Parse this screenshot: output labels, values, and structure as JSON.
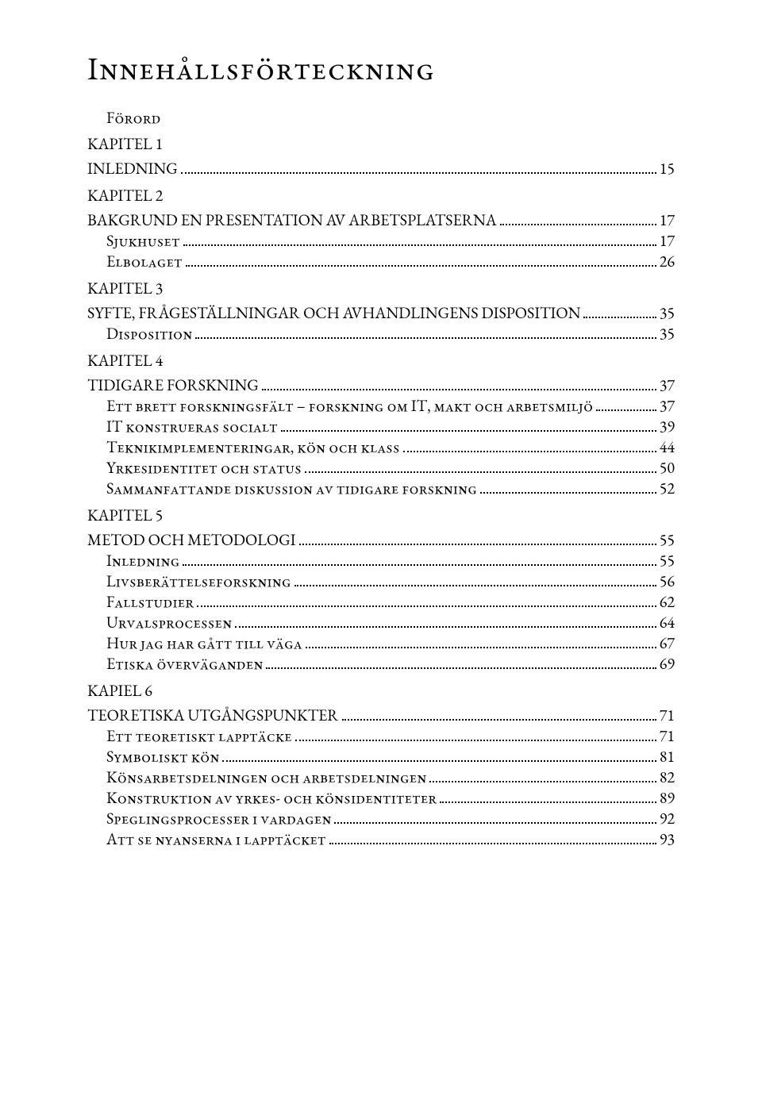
{
  "title": "Innehållsförteckning",
  "toc": [
    {
      "level": 1,
      "label": "Förord",
      "page": null,
      "small_caps": true
    },
    {
      "level": 0,
      "label": "KAPITEL 1",
      "page": null,
      "small_caps": false
    },
    {
      "level": 0,
      "label": "INLEDNING",
      "page": "15",
      "small_caps": false
    },
    {
      "level": 0,
      "label": "KAPITEL 2",
      "page": null,
      "small_caps": false
    },
    {
      "level": 0,
      "label": "BAKGRUND EN PRESENTATION AV ARBETSPLATSERNA",
      "page": "17",
      "small_caps": false
    },
    {
      "level": 1,
      "label": "Sjukhuset",
      "page": "17",
      "small_caps": true
    },
    {
      "level": 1,
      "label": "Elbolaget",
      "page": "26",
      "small_caps": true
    },
    {
      "level": 0,
      "label": "KAPITEL 3",
      "page": null,
      "small_caps": false
    },
    {
      "level": 0,
      "label": "SYFTE, FRÅGESTÄLLNINGAR OCH AVHANDLINGENS DISPOSITION",
      "page": "35",
      "small_caps": false
    },
    {
      "level": 1,
      "label": "Disposition",
      "page": "35",
      "small_caps": true
    },
    {
      "level": 0,
      "label": "KAPITEL 4",
      "page": null,
      "small_caps": false
    },
    {
      "level": 0,
      "label": "TIDIGARE FORSKNING",
      "page": "37",
      "small_caps": false
    },
    {
      "level": 1,
      "label": "Ett brett forskningsfält – forskning om IT, makt och arbetsmiljö",
      "page": "37",
      "small_caps": true
    },
    {
      "level": 1,
      "label": "IT konstrueras socialt",
      "page": "39",
      "small_caps": true
    },
    {
      "level": 1,
      "label": "Teknikimplementeringar, kön och klass",
      "page": "44",
      "small_caps": true
    },
    {
      "level": 1,
      "label": "Yrkesidentitet och status",
      "page": "50",
      "small_caps": true
    },
    {
      "level": 1,
      "label": "Sammanfattande diskussion av tidigare forskning",
      "page": "52",
      "small_caps": true
    },
    {
      "level": 0,
      "label": "KAPITEL 5",
      "page": null,
      "small_caps": false
    },
    {
      "level": 0,
      "label": "METOD OCH METODOLOGI",
      "page": "55",
      "small_caps": false
    },
    {
      "level": 1,
      "label": "Inledning",
      "page": "55",
      "small_caps": true
    },
    {
      "level": 1,
      "label": "Livsberättelseforskning",
      "page": "56",
      "small_caps": true
    },
    {
      "level": 1,
      "label": "Fallstudier",
      "page": "62",
      "small_caps": true
    },
    {
      "level": 1,
      "label": "Urvalsprocessen",
      "page": "64",
      "small_caps": true
    },
    {
      "level": 1,
      "label": "Hur jag har gått till väga",
      "page": "67",
      "small_caps": true
    },
    {
      "level": 1,
      "label": "Etiska överväganden",
      "page": "69",
      "small_caps": true
    },
    {
      "level": 0,
      "label": "KAPIEL 6",
      "page": null,
      "small_caps": false
    },
    {
      "level": 0,
      "label": "TEORETISKA UTGÅNGSPUNKTER",
      "page": "71",
      "small_caps": false
    },
    {
      "level": 1,
      "label": "Ett teoretiskt lapptäcke",
      "page": "71",
      "small_caps": true
    },
    {
      "level": 1,
      "label": "Symboliskt kön",
      "page": "81",
      "small_caps": true
    },
    {
      "level": 1,
      "label": "Könsarbetsdelningen och arbetsdelningen",
      "page": "82",
      "small_caps": true
    },
    {
      "level": 1,
      "label": "Konstruktion av yrkes- och könsidentiteter",
      "page": "89",
      "small_caps": true
    },
    {
      "level": 1,
      "label": "Speglingsprocesser i vardagen",
      "page": "92",
      "small_caps": true
    },
    {
      "level": 1,
      "label": "Att se nyanserna i lapptäcket",
      "page": "93",
      "small_caps": true
    }
  ]
}
